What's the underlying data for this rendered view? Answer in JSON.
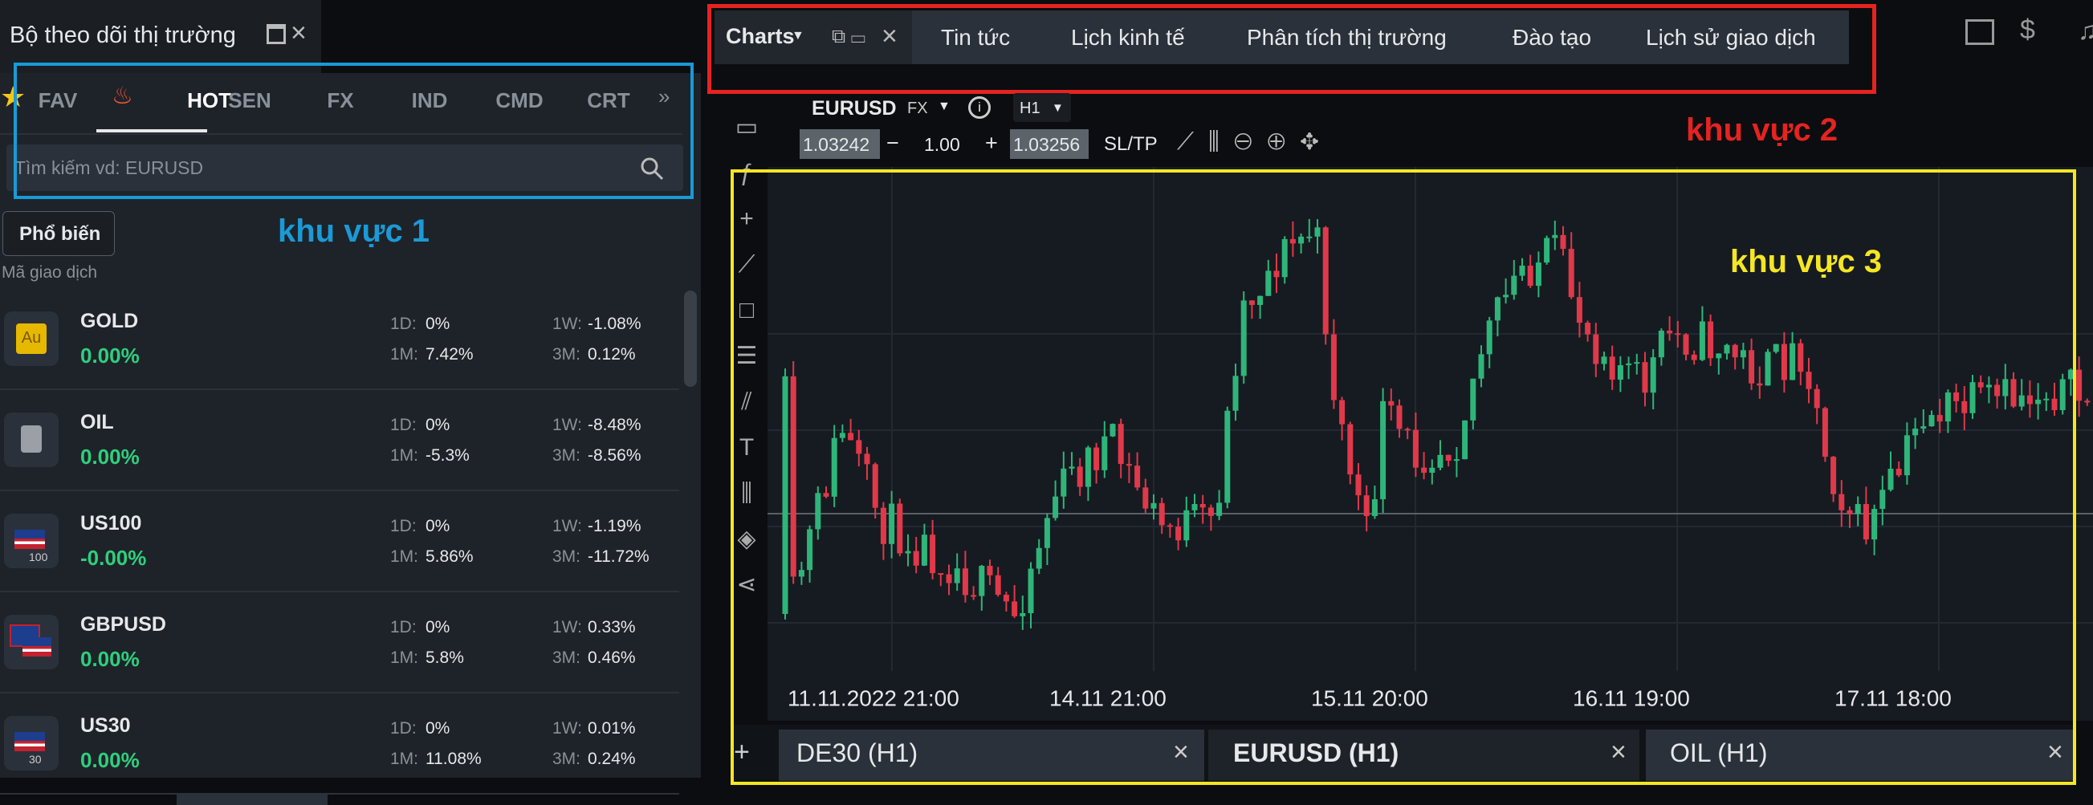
{
  "watchlist": {
    "title": "Bộ theo dõi thị trường",
    "tabs": [
      "FAV",
      "HOT",
      "SEN",
      "FX",
      "IND",
      "CMD",
      "CRT"
    ],
    "search_placeholder": "Tìm kiếm vd: EURUSD",
    "filter_button": "Phổ biến",
    "column_label": "Mã giao dịch",
    "period_labels": [
      "1D:",
      "1W:",
      "1M:",
      "3M:"
    ],
    "instruments": [
      {
        "name": "GOLD",
        "icon_text": "Au",
        "change": "0.00%",
        "d1": "0%",
        "w1": "-1.08%",
        "m1": "7.42%",
        "m3": "0.12%"
      },
      {
        "name": "OIL",
        "change": "0.00%",
        "d1": "0%",
        "w1": "-8.48%",
        "m1": "-5.3%",
        "m3": "-8.56%"
      },
      {
        "name": "US100",
        "icon_text": "100",
        "change": "-0.00%",
        "d1": "0%",
        "w1": "-1.19%",
        "m1": "5.86%",
        "m3": "-11.72%"
      },
      {
        "name": "GBPUSD",
        "change": "0.00%",
        "d1": "0%",
        "w1": "0.33%",
        "m1": "5.8%",
        "m3": "0.46%"
      },
      {
        "name": "US30",
        "icon_text": "30",
        "change": "0.00%",
        "d1": "0%",
        "w1": "0.01%",
        "m1": "11.08%",
        "m3": "0.24%"
      }
    ]
  },
  "top_nav": {
    "charts_tab": "Charts",
    "items": [
      "Tin tức",
      "Lịch kinh tế",
      "Phân tích thị trường",
      "Đào tạo",
      "Lịch sử giao dịch"
    ]
  },
  "chart_toolbar": {
    "symbol": "EURUSD",
    "market": "FX",
    "timeframe": "H1",
    "bid": "1.03242",
    "minus": "−",
    "volume": "1.00",
    "plus": "+",
    "ask": "1.03256",
    "sltp": "SL/TP"
  },
  "chart": {
    "x_labels": [
      "11.11.2022 21:00",
      "14.11 21:00",
      "15.11 20:00",
      "16.11 19:00",
      "17.11 18:00"
    ]
  },
  "chart_tabs": {
    "add": "+",
    "tabs": [
      "DE30 (H1)",
      "EURUSD (H1)",
      "OIL (H1)"
    ],
    "close": "×"
  },
  "annotations": [
    "khu vực 1",
    "khu vực 2",
    "khu vực 3"
  ]
}
